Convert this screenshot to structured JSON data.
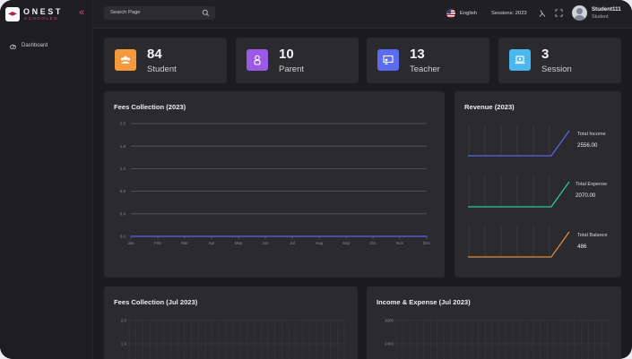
{
  "brand": {
    "name": "ONEST",
    "sub": "SCHOOLED",
    "collapse_icon": "double-chevron-left-icon",
    "accent": "#d64a6a"
  },
  "sidebar": {
    "items": [
      {
        "label": "Dashboard",
        "icon": "dashboard-gauge-icon"
      }
    ]
  },
  "header": {
    "search_placeholder": "Search Page",
    "language": "English",
    "session": "Sessions: 2023",
    "user_name": "Student111",
    "user_role": "Student"
  },
  "stats": [
    {
      "value": "84",
      "label": "Student",
      "color": "#f59a3c",
      "icon": "student-group-icon"
    },
    {
      "value": "10",
      "label": "Parent",
      "color": "#9b59e6",
      "icon": "parent-icon"
    },
    {
      "value": "13",
      "label": "Teacher",
      "color": "#5b6cf0",
      "icon": "teacher-board-icon"
    },
    {
      "value": "3",
      "label": "Session",
      "color": "#4ab7ef",
      "icon": "session-laptop-icon"
    }
  ],
  "fees_year": {
    "title": "Fees Collection (2023)"
  },
  "revenue": {
    "title": "Revenue (2023)",
    "items": [
      {
        "label": "Total Income",
        "value": "2556.00",
        "color": "#5b64e8"
      },
      {
        "label": "Total Expense",
        "value": "2070.00",
        "color": "#2ec79a"
      },
      {
        "label": "Total Balance",
        "value": "486",
        "color": "#e08a3c"
      }
    ]
  },
  "fees_month": {
    "title": "Fees Collection (Jul 2023)"
  },
  "income_expense": {
    "title": "Income & Expense (Jul 2023)"
  },
  "chart_data": [
    {
      "type": "line",
      "title": "Fees Collection (2023)",
      "x": [
        "Jan",
        "Feb",
        "Mar",
        "Apr",
        "May",
        "Jun",
        "Jul",
        "Aug",
        "Sep",
        "Oct",
        "Nov",
        "Dec"
      ],
      "yticks": [
        "0.0",
        "0.4",
        "0.8",
        "1.2",
        "1.6",
        "2.0"
      ],
      "series": [
        {
          "values": [
            0,
            0,
            0,
            0,
            0,
            0,
            0,
            0,
            0,
            0,
            0,
            0
          ],
          "color": "#5b64e8"
        }
      ],
      "ylim": [
        0,
        2.0
      ],
      "grid": true
    },
    {
      "type": "bar",
      "title": "Fees Collection (Jul 2023)",
      "yticks": [
        "2.0",
        "1.6"
      ],
      "ylim": [
        0,
        2.0
      ]
    },
    {
      "type": "bar",
      "title": "Income & Expense (Jul 2023)",
      "yticks": [
        "3000",
        "2400"
      ],
      "ylim": [
        0,
        3000
      ]
    }
  ]
}
